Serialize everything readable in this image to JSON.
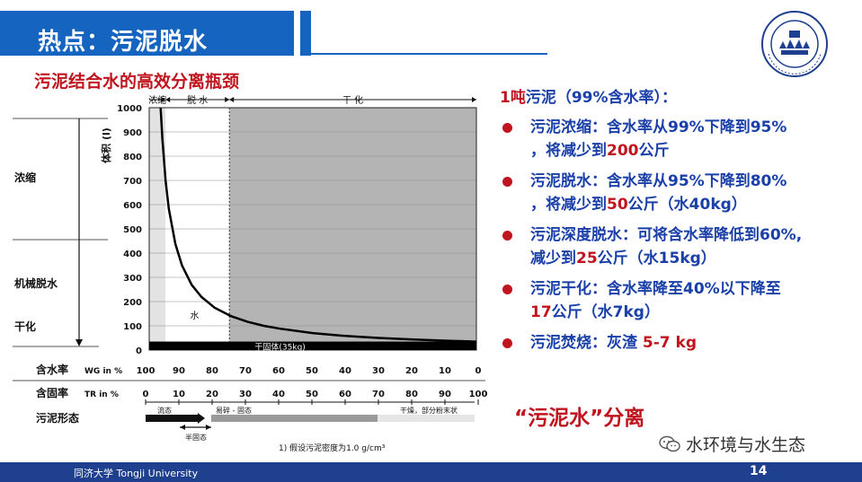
{
  "slide": {
    "title": "热点：污泥脱水",
    "chart_heading": "污泥结合水的高效分离瓶颈",
    "lead": {
      "prefix": "1吨",
      "text": "污泥（99%含水率）："
    },
    "bullets": [
      {
        "lines": [
          [
            {
              "t": "污泥浓缩：含水率从99%下降到95%",
              "c": "blue"
            }
          ],
          [
            {
              "t": "，将减少到",
              "c": "blue"
            },
            {
              "t": "200",
              "c": "red"
            },
            {
              "t": "公斤",
              "c": "blue"
            }
          ]
        ]
      },
      {
        "lines": [
          [
            {
              "t": "污泥脱水：含水率从95%下降到80%",
              "c": "blue"
            }
          ],
          [
            {
              "t": "，将减少到",
              "c": "blue"
            },
            {
              "t": "50",
              "c": "red"
            },
            {
              "t": "公斤（水40kg）",
              "c": "blue"
            }
          ]
        ]
      },
      {
        "lines": [
          [
            {
              "t": "污泥深度脱水：可将含水率降低到60%,",
              "c": "blue"
            }
          ],
          [
            {
              "t": "减少到",
              "c": "blue"
            },
            {
              "t": "25",
              "c": "red"
            },
            {
              "t": "公斤（水15kg）",
              "c": "blue"
            }
          ]
        ]
      },
      {
        "lines": [
          [
            {
              "t": "污泥干化：含水率降至40%以下降至",
              "c": "blue"
            }
          ],
          [
            {
              "t": "17",
              "c": "red"
            },
            {
              "t": "公斤（水7kg）",
              "c": "blue"
            }
          ]
        ]
      },
      {
        "lines": [
          [
            {
              "t": "污泥焚烧：灰渣 ",
              "c": "blue"
            },
            {
              "t": "5-7 kg",
              "c": "red"
            }
          ]
        ]
      }
    ],
    "separation_title": "“污泥水”分离",
    "wechat_label": "水环境与水生态",
    "footer_text": "同济大学 Tongji University",
    "page_number": "14",
    "colors": {
      "blue": "#1a3fa8",
      "red": "#c0141e",
      "header": "#1565c0",
      "footer": "#1f3f8f"
    }
  },
  "chart_data": {
    "type": "line",
    "ylabel": "体积 (l)",
    "yticks": [
      0,
      100,
      200,
      300,
      400,
      500,
      600,
      700,
      800,
      900,
      1000
    ],
    "ylim": [
      0,
      1000
    ],
    "x_water_content_label": "WG in %",
    "x_water_ticks": [
      "100",
      "90",
      "80",
      "70",
      "60",
      "50",
      "40",
      "30",
      "20",
      "10",
      "0"
    ],
    "x_solid_content_label": "TR in %",
    "x_solid_ticks": [
      "0",
      "10",
      "20",
      "30",
      "40",
      "50",
      "60",
      "70",
      "80",
      "90",
      "100"
    ],
    "zones": [
      "浓缩",
      "脱 水",
      "干 化"
    ],
    "left_labels": [
      "浓缩",
      "机械脱水",
      "干化"
    ],
    "row_labels": [
      "含水率",
      "含固率",
      "污泥形态"
    ],
    "curve_label": "水",
    "solids_label": "干固体(35kg)",
    "form_labels": [
      "流态",
      "易碎 - 固态",
      "干燥，部分粉末状",
      "半固态"
    ],
    "footnote": "1) 假设污泥密度为1.0 g/cm³",
    "series": [
      {
        "solid_pct": [
          3.5,
          4,
          5,
          6,
          8,
          10,
          13,
          16,
          20,
          25,
          30,
          35,
          40,
          50,
          60,
          70,
          80,
          90,
          100
        ],
        "volume_l": [
          1000,
          875,
          700,
          583,
          438,
          350,
          269,
          219,
          175,
          140,
          117,
          100,
          88,
          70,
          58,
          50,
          44,
          39,
          35
        ]
      }
    ]
  }
}
